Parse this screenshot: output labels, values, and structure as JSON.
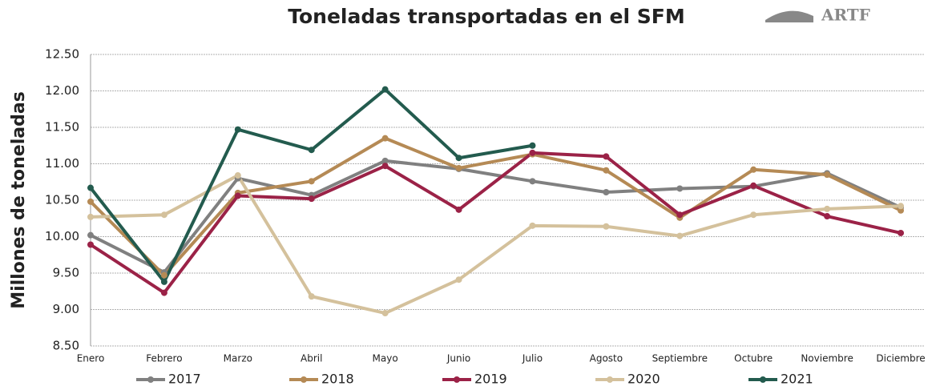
{
  "chart_data": {
    "type": "line",
    "title": "Toneladas transportadas en el SFM",
    "y_label": "Millones de toneladas",
    "logo": "ARTF",
    "categories": [
      "Enero",
      "Febrero",
      "Marzo",
      "Abril",
      "Mayo",
      "Junio",
      "Julio",
      "Agosto",
      "Septiembre",
      "Octubre",
      "Noviembre",
      "Diciembre"
    ],
    "series": [
      {
        "name": "2017",
        "color": "#808080",
        "values": [
          10.02,
          9.51,
          10.8,
          10.57,
          11.04,
          10.93,
          10.76,
          10.61,
          10.66,
          10.69,
          10.87,
          10.4
        ]
      },
      {
        "name": "2018",
        "color": "#b58a55",
        "values": [
          10.48,
          9.47,
          10.6,
          10.76,
          11.35,
          10.94,
          11.13,
          10.91,
          10.26,
          10.92,
          10.85,
          10.36
        ]
      },
      {
        "name": "2019",
        "color": "#9b2247",
        "values": [
          9.89,
          9.23,
          10.56,
          10.52,
          10.97,
          10.37,
          11.15,
          11.1,
          10.3,
          10.7,
          10.28,
          10.05
        ]
      },
      {
        "name": "2020",
        "color": "#d4c19c",
        "values": [
          10.27,
          10.3,
          10.84,
          9.18,
          8.95,
          9.41,
          10.15,
          10.14,
          10.01,
          10.3,
          10.38,
          10.42
        ]
      },
      {
        "name": "2021",
        "color": "#235b4e",
        "values": [
          10.67,
          9.38,
          11.47,
          11.19,
          12.02,
          11.08,
          11.25,
          null,
          null,
          null,
          null,
          null
        ]
      }
    ],
    "ylim": [
      8.5,
      12.5
    ],
    "yticks": [
      {
        "value": 8.5,
        "label": "8.50"
      },
      {
        "value": 9,
        "label": "9.00"
      },
      {
        "value": 9.5,
        "label": "9.50"
      },
      {
        "value": 10,
        "label": "10.00"
      },
      {
        "value": 10.5,
        "label": "10.50"
      },
      {
        "value": 11,
        "label": "11.00"
      },
      {
        "value": 11.5,
        "label": "11.50"
      },
      {
        "value": 12,
        "label": "12.00"
      },
      {
        "value": 12.5,
        "label": "12.50"
      }
    ],
    "grid": true,
    "legend": "bottom"
  }
}
